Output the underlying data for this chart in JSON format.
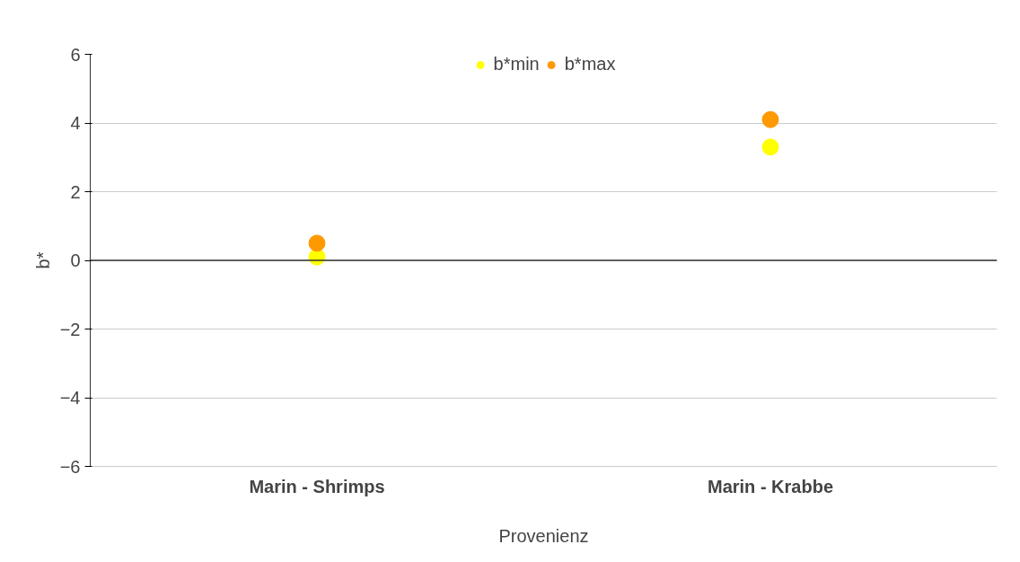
{
  "chart_data": {
    "type": "scatter",
    "xlabel": "Provenienz",
    "ylabel": "b*",
    "categories": [
      "Marin - Shrimps",
      "Marin - Krabbe"
    ],
    "series": [
      {
        "name": "b*min",
        "color": "#ffff00",
        "values": [
          0.1,
          3.3
        ]
      },
      {
        "name": "b*max",
        "color": "#ff9900",
        "values": [
          0.5,
          4.1
        ]
      }
    ],
    "ylim": [
      -6,
      6
    ],
    "yticks": [
      -6,
      -4,
      -2,
      0,
      2,
      4,
      6
    ],
    "grid": "y",
    "legend": "top",
    "marker": "circle",
    "ref_lines": [
      {
        "axis": "y",
        "value": 0,
        "color": "#333333"
      }
    ]
  }
}
